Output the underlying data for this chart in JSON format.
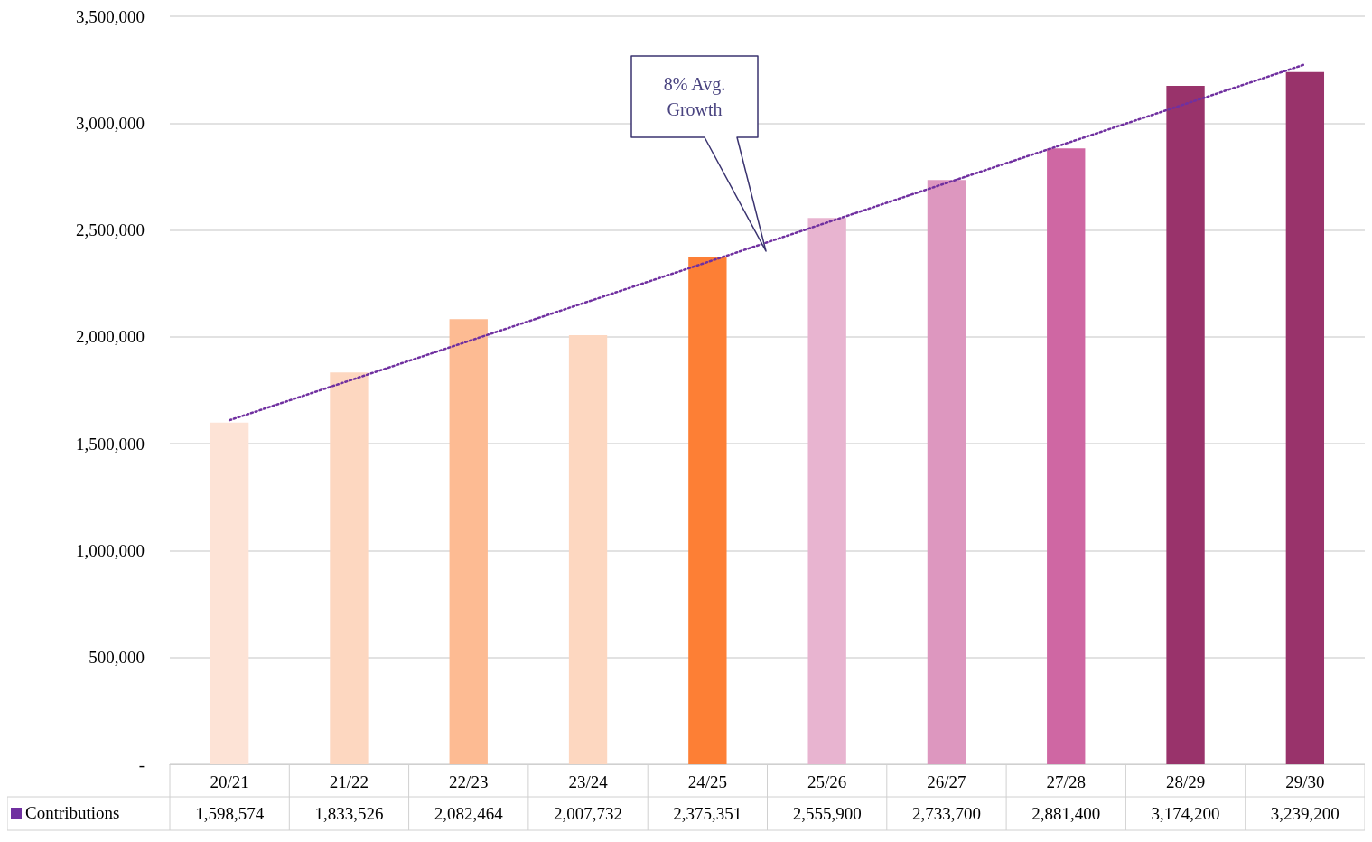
{
  "chart_data": {
    "type": "bar",
    "categories": [
      "20/21",
      "21/22",
      "22/23",
      "23/24",
      "24/25",
      "25/26",
      "26/27",
      "27/28",
      "28/29",
      "29/30"
    ],
    "series": [
      {
        "name": "Contributions",
        "color": "#7030a0",
        "values": [
          1598574,
          1833526,
          2082464,
          2007732,
          2375351,
          2555900,
          2733700,
          2881400,
          3174200,
          3239200
        ],
        "colors": [
          "#fde3d6",
          "#fdd7c0",
          "#fdbb93",
          "#fdd7c0",
          "#fd7f35",
          "#e8b4d0",
          "#dd97bf",
          "#cf67a3",
          "#99336b",
          "#99336b"
        ],
        "value_labels": [
          "1,598,574",
          "1,833,526",
          "2,082,464",
          "2,007,732",
          "2,375,351",
          "2,555,900",
          "2,733,700",
          "2,881,400",
          "3,174,200",
          "3,239,200"
        ]
      },
      {
        "type": "line",
        "color": "#7030a0",
        "line_style": "dotted",
        "x": [
          "20/21",
          "29/30"
        ],
        "values": [
          1610000,
          3275000
        ]
      }
    ],
    "ylim": [
      0,
      3500000
    ],
    "yticks": [
      {
        "value": 0,
        "label": "-"
      },
      {
        "value": 500000,
        "label": "500,000"
      },
      {
        "value": 1000000,
        "label": "1,000,000"
      },
      {
        "value": 1500000,
        "label": "1,500,000"
      },
      {
        "value": 2000000,
        "label": "2,000,000"
      },
      {
        "value": 2500000,
        "label": "2,500,000"
      },
      {
        "value": 3000000,
        "label": "3,000,000"
      },
      {
        "value": 3500000,
        "label": "3,500,000"
      }
    ],
    "grid": "y",
    "legend": "bottom left",
    "annotations": [
      "8% Avg. Growth"
    ]
  }
}
